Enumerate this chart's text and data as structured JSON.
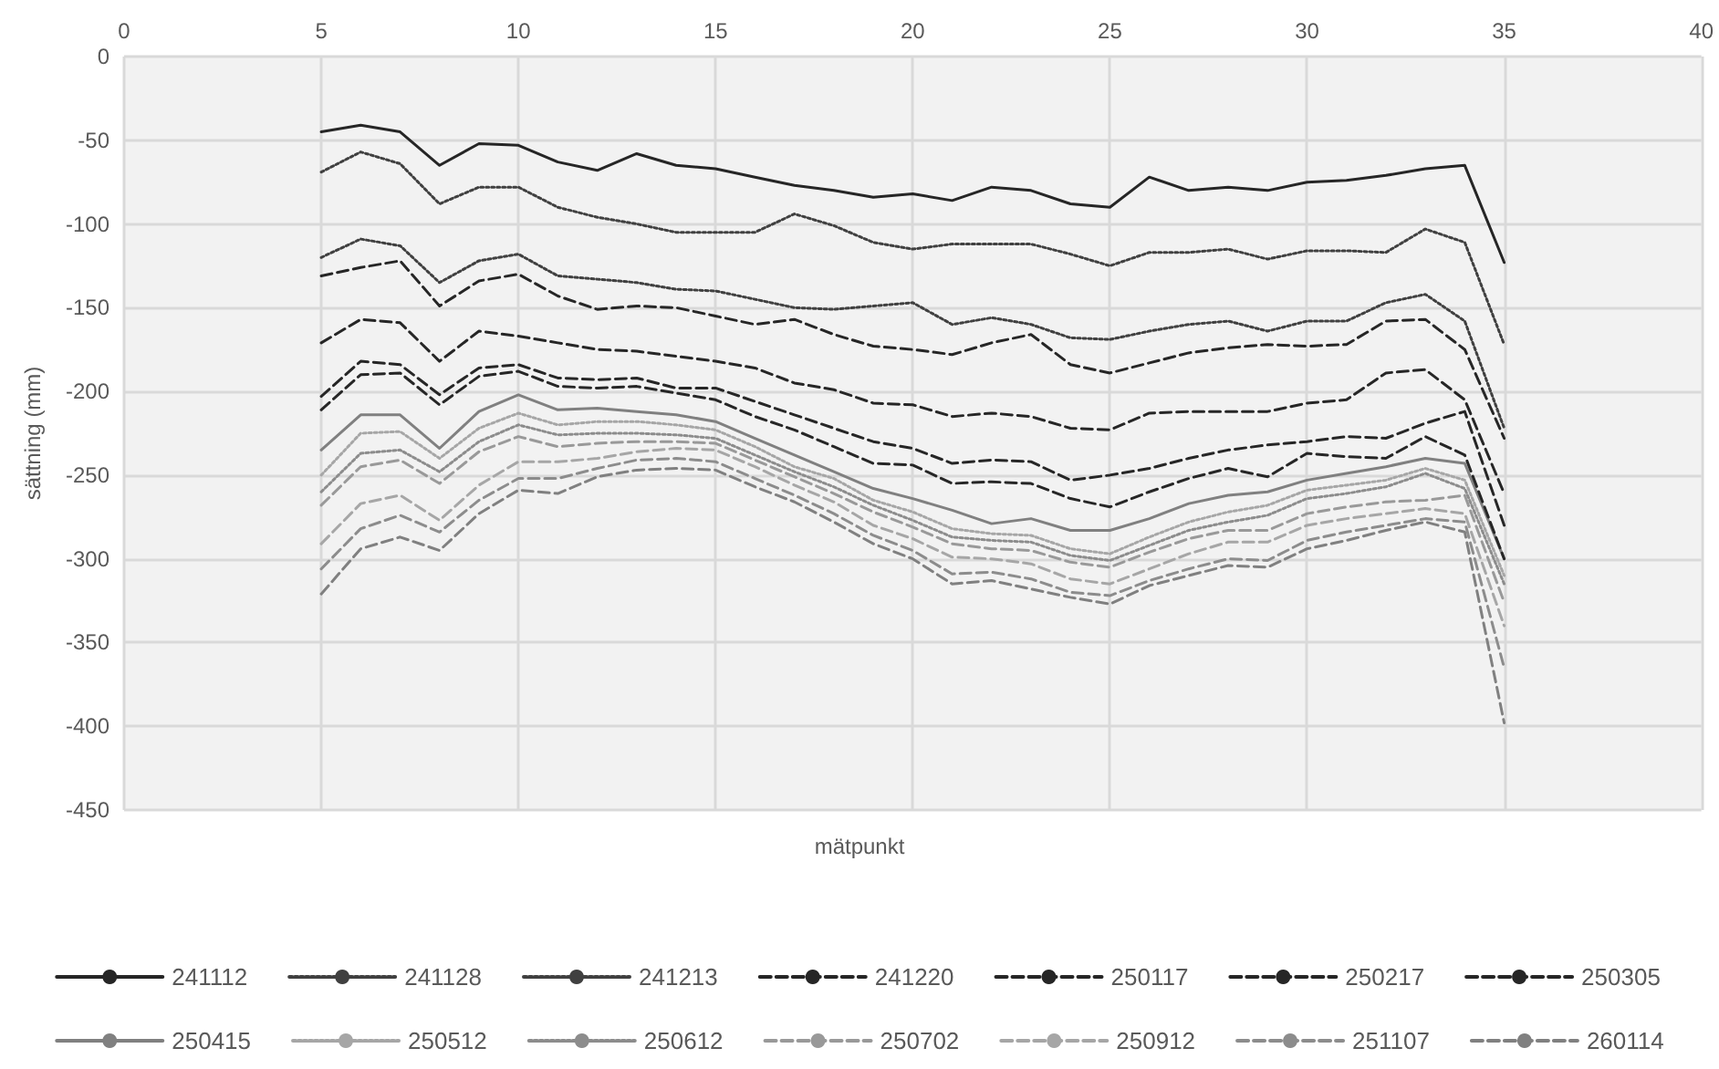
{
  "chart_data": {
    "type": "line",
    "xlabel": "mätpunkt",
    "ylabel": "sättning (mm)",
    "x": [
      5,
      6,
      7,
      8,
      9,
      10,
      11,
      12,
      13,
      14,
      15,
      16,
      17,
      18,
      19,
      20,
      21,
      22,
      23,
      24,
      25,
      26,
      27,
      28,
      29,
      30,
      31,
      32,
      33,
      34,
      35
    ],
    "xlim": [
      0,
      40
    ],
    "xticks": [
      0,
      5,
      10,
      15,
      20,
      25,
      30,
      35,
      40
    ],
    "ylim": [
      -450,
      0
    ],
    "yticks": [
      -450,
      -400,
      -350,
      -300,
      -250,
      -200,
      -150,
      -100,
      -50,
      0
    ],
    "grid": true,
    "legend": "bottom",
    "marker": "none",
    "series": [
      {
        "name": "241112",
        "color": "#262626",
        "line_style": "solid",
        "values": [
          -45,
          -41,
          -45,
          -65,
          -52,
          -53,
          -63,
          -68,
          -58,
          -65,
          -67,
          -72,
          -77,
          -80,
          -84,
          -82,
          -86,
          -78,
          -80,
          -88,
          -90,
          -72,
          -80,
          -78,
          -80,
          -75,
          -74,
          -71,
          -67,
          -65,
          -123
        ]
      },
      {
        "name": "241128",
        "color": "#404040",
        "line_style": "dotted",
        "values": [
          -69,
          -57,
          -64,
          -88,
          -78,
          -78,
          -90,
          -96,
          -100,
          -105,
          -105,
          -105,
          -94,
          -101,
          -111,
          -115,
          -112,
          -112,
          -112,
          -118,
          -125,
          -117,
          -117,
          -115,
          -121,
          -116,
          -116,
          -117,
          -103,
          -111,
          -172
        ]
      },
      {
        "name": "241213",
        "color": "#404040",
        "line_style": "dotted",
        "values": [
          -120,
          -109,
          -113,
          -135,
          -122,
          -118,
          -131,
          -133,
          -135,
          -139,
          -140,
          -145,
          -150,
          -151,
          -149,
          -147,
          -160,
          -156,
          -160,
          -168,
          -169,
          -164,
          -160,
          -158,
          -164,
          -158,
          -158,
          -147,
          -142,
          -158,
          -222
        ]
      },
      {
        "name": "241220",
        "color": "#262626",
        "line_style": "dashed",
        "values": [
          -131,
          -126,
          -122,
          -149,
          -134,
          -130,
          -143,
          -151,
          -149,
          -150,
          -155,
          -160,
          -157,
          -166,
          -173,
          -175,
          -178,
          -171,
          -166,
          -184,
          -189,
          -183,
          -177,
          -174,
          -172,
          -173,
          -172,
          -158,
          -157,
          -175,
          -228
        ]
      },
      {
        "name": "250117",
        "color": "#262626",
        "line_style": "dashed",
        "values": [
          -171,
          -157,
          -159,
          -182,
          -164,
          -167,
          -171,
          -175,
          -176,
          -179,
          -182,
          -186,
          -195,
          -199,
          -207,
          -208,
          -215,
          -213,
          -215,
          -222,
          -223,
          -213,
          -212,
          -212,
          -212,
          -207,
          -205,
          -189,
          -187,
          -205,
          -261
        ]
      },
      {
        "name": "250217",
        "color": "#262626",
        "line_style": "dashed",
        "values": [
          -203,
          -182,
          -184,
          -202,
          -186,
          -184,
          -192,
          -193,
          -192,
          -198,
          -198,
          -206,
          -214,
          -222,
          -230,
          -234,
          -243,
          -241,
          -242,
          -253,
          -250,
          -246,
          -240,
          -235,
          -232,
          -230,
          -227,
          -228,
          -219,
          -212,
          -280
        ]
      },
      {
        "name": "250305",
        "color": "#262626",
        "line_style": "dashed",
        "values": [
          -211,
          -190,
          -189,
          -208,
          -191,
          -188,
          -197,
          -198,
          -197,
          -201,
          -205,
          -215,
          -223,
          -233,
          -243,
          -244,
          -255,
          -254,
          -255,
          -264,
          -269,
          -260,
          -252,
          -246,
          -251,
          -237,
          -239,
          -240,
          -227,
          -238,
          -300
        ]
      },
      {
        "name": "250415",
        "color": "#808080",
        "line_style": "solid",
        "values": [
          -235,
          -214,
          -214,
          -234,
          -212,
          -202,
          -211,
          -210,
          -212,
          -214,
          -218,
          -228,
          -238,
          -248,
          -258,
          -264,
          -271,
          -279,
          -276,
          -283,
          -283,
          -276,
          -267,
          -262,
          -260,
          -253,
          -249,
          -245,
          -240,
          -243,
          -300
        ]
      },
      {
        "name": "250512",
        "color": "#a6a6a6",
        "line_style": "dotted",
        "values": [
          -250,
          -225,
          -224,
          -240,
          -222,
          -213,
          -220,
          -218,
          -218,
          -220,
          -223,
          -233,
          -245,
          -252,
          -265,
          -272,
          -282,
          -285,
          -286,
          -294,
          -297,
          -287,
          -278,
          -272,
          -268,
          -259,
          -256,
          -253,
          -246,
          -253,
          -310
        ]
      },
      {
        "name": "250612",
        "color": "#8c8c8c",
        "line_style": "dotted",
        "values": [
          -260,
          -237,
          -235,
          -248,
          -230,
          -220,
          -226,
          -225,
          -225,
          -226,
          -228,
          -238,
          -248,
          -257,
          -268,
          -277,
          -287,
          -289,
          -290,
          -298,
          -301,
          -292,
          -283,
          -278,
          -274,
          -264,
          -261,
          -257,
          -249,
          -258,
          -315
        ]
      },
      {
        "name": "250702",
        "color": "#999999",
        "line_style": "dashed",
        "values": [
          -268,
          -245,
          -241,
          -255,
          -236,
          -227,
          -233,
          -231,
          -230,
          -230,
          -231,
          -241,
          -251,
          -261,
          -272,
          -281,
          -291,
          -294,
          -295,
          -302,
          -305,
          -296,
          -288,
          -283,
          -283,
          -273,
          -269,
          -266,
          -265,
          -262,
          -326
        ]
      },
      {
        "name": "250912",
        "color": "#a6a6a6",
        "line_style": "dashed",
        "values": [
          -291,
          -267,
          -262,
          -277,
          -256,
          -242,
          -242,
          -240,
          -236,
          -234,
          -235,
          -245,
          -256,
          -266,
          -280,
          -288,
          -299,
          -300,
          -303,
          -312,
          -315,
          -306,
          -297,
          -290,
          -290,
          -280,
          -276,
          -273,
          -270,
          -273,
          -340
        ]
      },
      {
        "name": "251107",
        "color": "#8c8c8c",
        "line_style": "dashed",
        "values": [
          -306,
          -282,
          -274,
          -284,
          -265,
          -252,
          -252,
          -246,
          -241,
          -240,
          -242,
          -252,
          -262,
          -273,
          -286,
          -295,
          -309,
          -308,
          -312,
          -320,
          -322,
          -313,
          -306,
          -300,
          -301,
          -289,
          -284,
          -280,
          -276,
          -278,
          -365
        ]
      },
      {
        "name": "260114",
        "color": "#808080",
        "line_style": "dashed",
        "values": [
          -321,
          -294,
          -287,
          -295,
          -273,
          -259,
          -261,
          -251,
          -247,
          -246,
          -247,
          -257,
          -266,
          -278,
          -291,
          -300,
          -315,
          -313,
          -318,
          -323,
          -327,
          -316,
          -310,
          -304,
          -305,
          -294,
          -289,
          -283,
          -278,
          -284,
          -398
        ]
      }
    ]
  }
}
